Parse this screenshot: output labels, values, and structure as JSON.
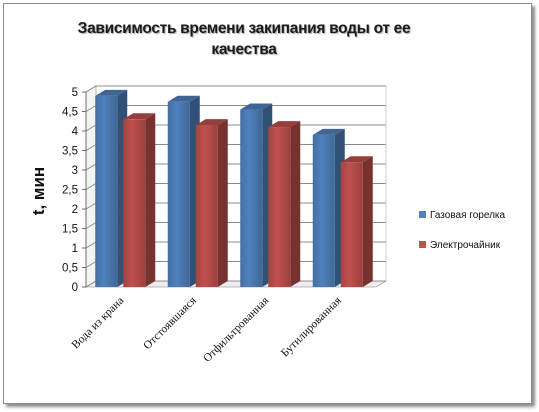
{
  "chart_data": {
    "type": "bar",
    "title": "Зависимость времени закипания воды от ее качества",
    "ylabel": "t, мин",
    "xlabel": "",
    "ylim": [
      0,
      5
    ],
    "yticks": [
      "0",
      "0,5",
      "1",
      "1,5",
      "2",
      "2,5",
      "3",
      "3,5",
      "4",
      "4,5",
      "5"
    ],
    "categories": [
      "Вода из крана",
      "Отстоявшаяся",
      "Отфильтрованная",
      "Бутилированная"
    ],
    "series": [
      {
        "name": "Газовая горелка",
        "values": [
          4.9,
          4.75,
          4.55,
          3.9
        ],
        "color": "#4f81bd"
      },
      {
        "name": "Электрочайник",
        "values": [
          4.3,
          4.15,
          4.1,
          3.2
        ],
        "color": "#c0504d"
      }
    ],
    "grid": true,
    "legend": "right"
  }
}
